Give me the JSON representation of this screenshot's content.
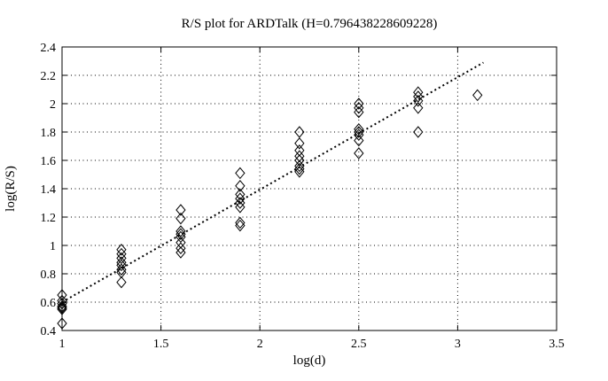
{
  "figure": {
    "background": "#ffffff",
    "foreground": "#000000"
  },
  "chart_data": {
    "type": "scatter",
    "title": "R/S plot for ARDTalk (H=0.796438228609228)",
    "xlabel": "log(d)",
    "ylabel": "log(R/S)",
    "hurst_H": "0.796438228609228",
    "xlim": [
      1,
      3.5
    ],
    "ylim": [
      0.4,
      2.4
    ],
    "xticks": {
      "values": [
        1,
        1.5,
        2,
        2.5,
        3,
        3.5
      ],
      "labels": [
        "1",
        "1.5",
        "2",
        "2.5",
        "3",
        "3.5"
      ]
    },
    "yticks": {
      "values": [
        0.4,
        0.6,
        0.8,
        1,
        1.2,
        1.4,
        1.6,
        1.8,
        2,
        2.2,
        2.4
      ],
      "labels": [
        "0.4",
        "0.6",
        "0.8",
        "1",
        "1.2",
        "1.4",
        "1.6",
        "1.8",
        "2",
        "2.2",
        "2.4"
      ]
    },
    "grid": "dotted",
    "legend_position": "none",
    "series": [
      {
        "name": "R/S values",
        "kind": "scatter",
        "marker": "open-diamond",
        "color": "#000000",
        "points": [
          [
            1.0,
            0.65
          ],
          [
            1.0,
            0.61
          ],
          [
            1.0,
            0.59
          ],
          [
            1.0,
            0.57
          ],
          [
            1.0,
            0.56
          ],
          [
            1.0,
            0.55
          ],
          [
            1.0,
            0.45
          ],
          [
            1.3,
            0.97
          ],
          [
            1.3,
            0.94
          ],
          [
            1.3,
            0.91
          ],
          [
            1.3,
            0.88
          ],
          [
            1.3,
            0.86
          ],
          [
            1.3,
            0.83
          ],
          [
            1.3,
            0.81
          ],
          [
            1.3,
            0.74
          ],
          [
            1.6,
            1.25
          ],
          [
            1.6,
            1.19
          ],
          [
            1.6,
            1.1
          ],
          [
            1.6,
            1.08
          ],
          [
            1.6,
            1.06
          ],
          [
            1.6,
            1.02
          ],
          [
            1.6,
            0.98
          ],
          [
            1.6,
            0.95
          ],
          [
            1.9,
            1.51
          ],
          [
            1.9,
            1.42
          ],
          [
            1.9,
            1.36
          ],
          [
            1.9,
            1.33
          ],
          [
            1.9,
            1.3
          ],
          [
            1.9,
            1.27
          ],
          [
            1.9,
            1.16
          ],
          [
            1.9,
            1.14
          ],
          [
            2.2,
            1.8
          ],
          [
            2.2,
            1.72
          ],
          [
            2.2,
            1.67
          ],
          [
            2.2,
            1.63
          ],
          [
            2.2,
            1.6
          ],
          [
            2.2,
            1.56
          ],
          [
            2.2,
            1.54
          ],
          [
            2.2,
            1.52
          ],
          [
            2.5,
            2.0
          ],
          [
            2.5,
            1.97
          ],
          [
            2.5,
            1.94
          ],
          [
            2.5,
            1.82
          ],
          [
            2.5,
            1.8
          ],
          [
            2.5,
            1.78
          ],
          [
            2.5,
            1.74
          ],
          [
            2.5,
            1.65
          ],
          [
            2.8,
            2.08
          ],
          [
            2.8,
            2.05
          ],
          [
            2.8,
            2.02
          ],
          [
            2.8,
            1.97
          ],
          [
            2.8,
            1.8
          ],
          [
            3.1,
            2.06
          ]
        ]
      },
      {
        "name": "fitted line",
        "kind": "line",
        "style": "dotted",
        "color": "#000000",
        "points": [
          [
            1.0,
            0.6
          ],
          [
            3.13,
            2.29
          ]
        ]
      }
    ]
  }
}
